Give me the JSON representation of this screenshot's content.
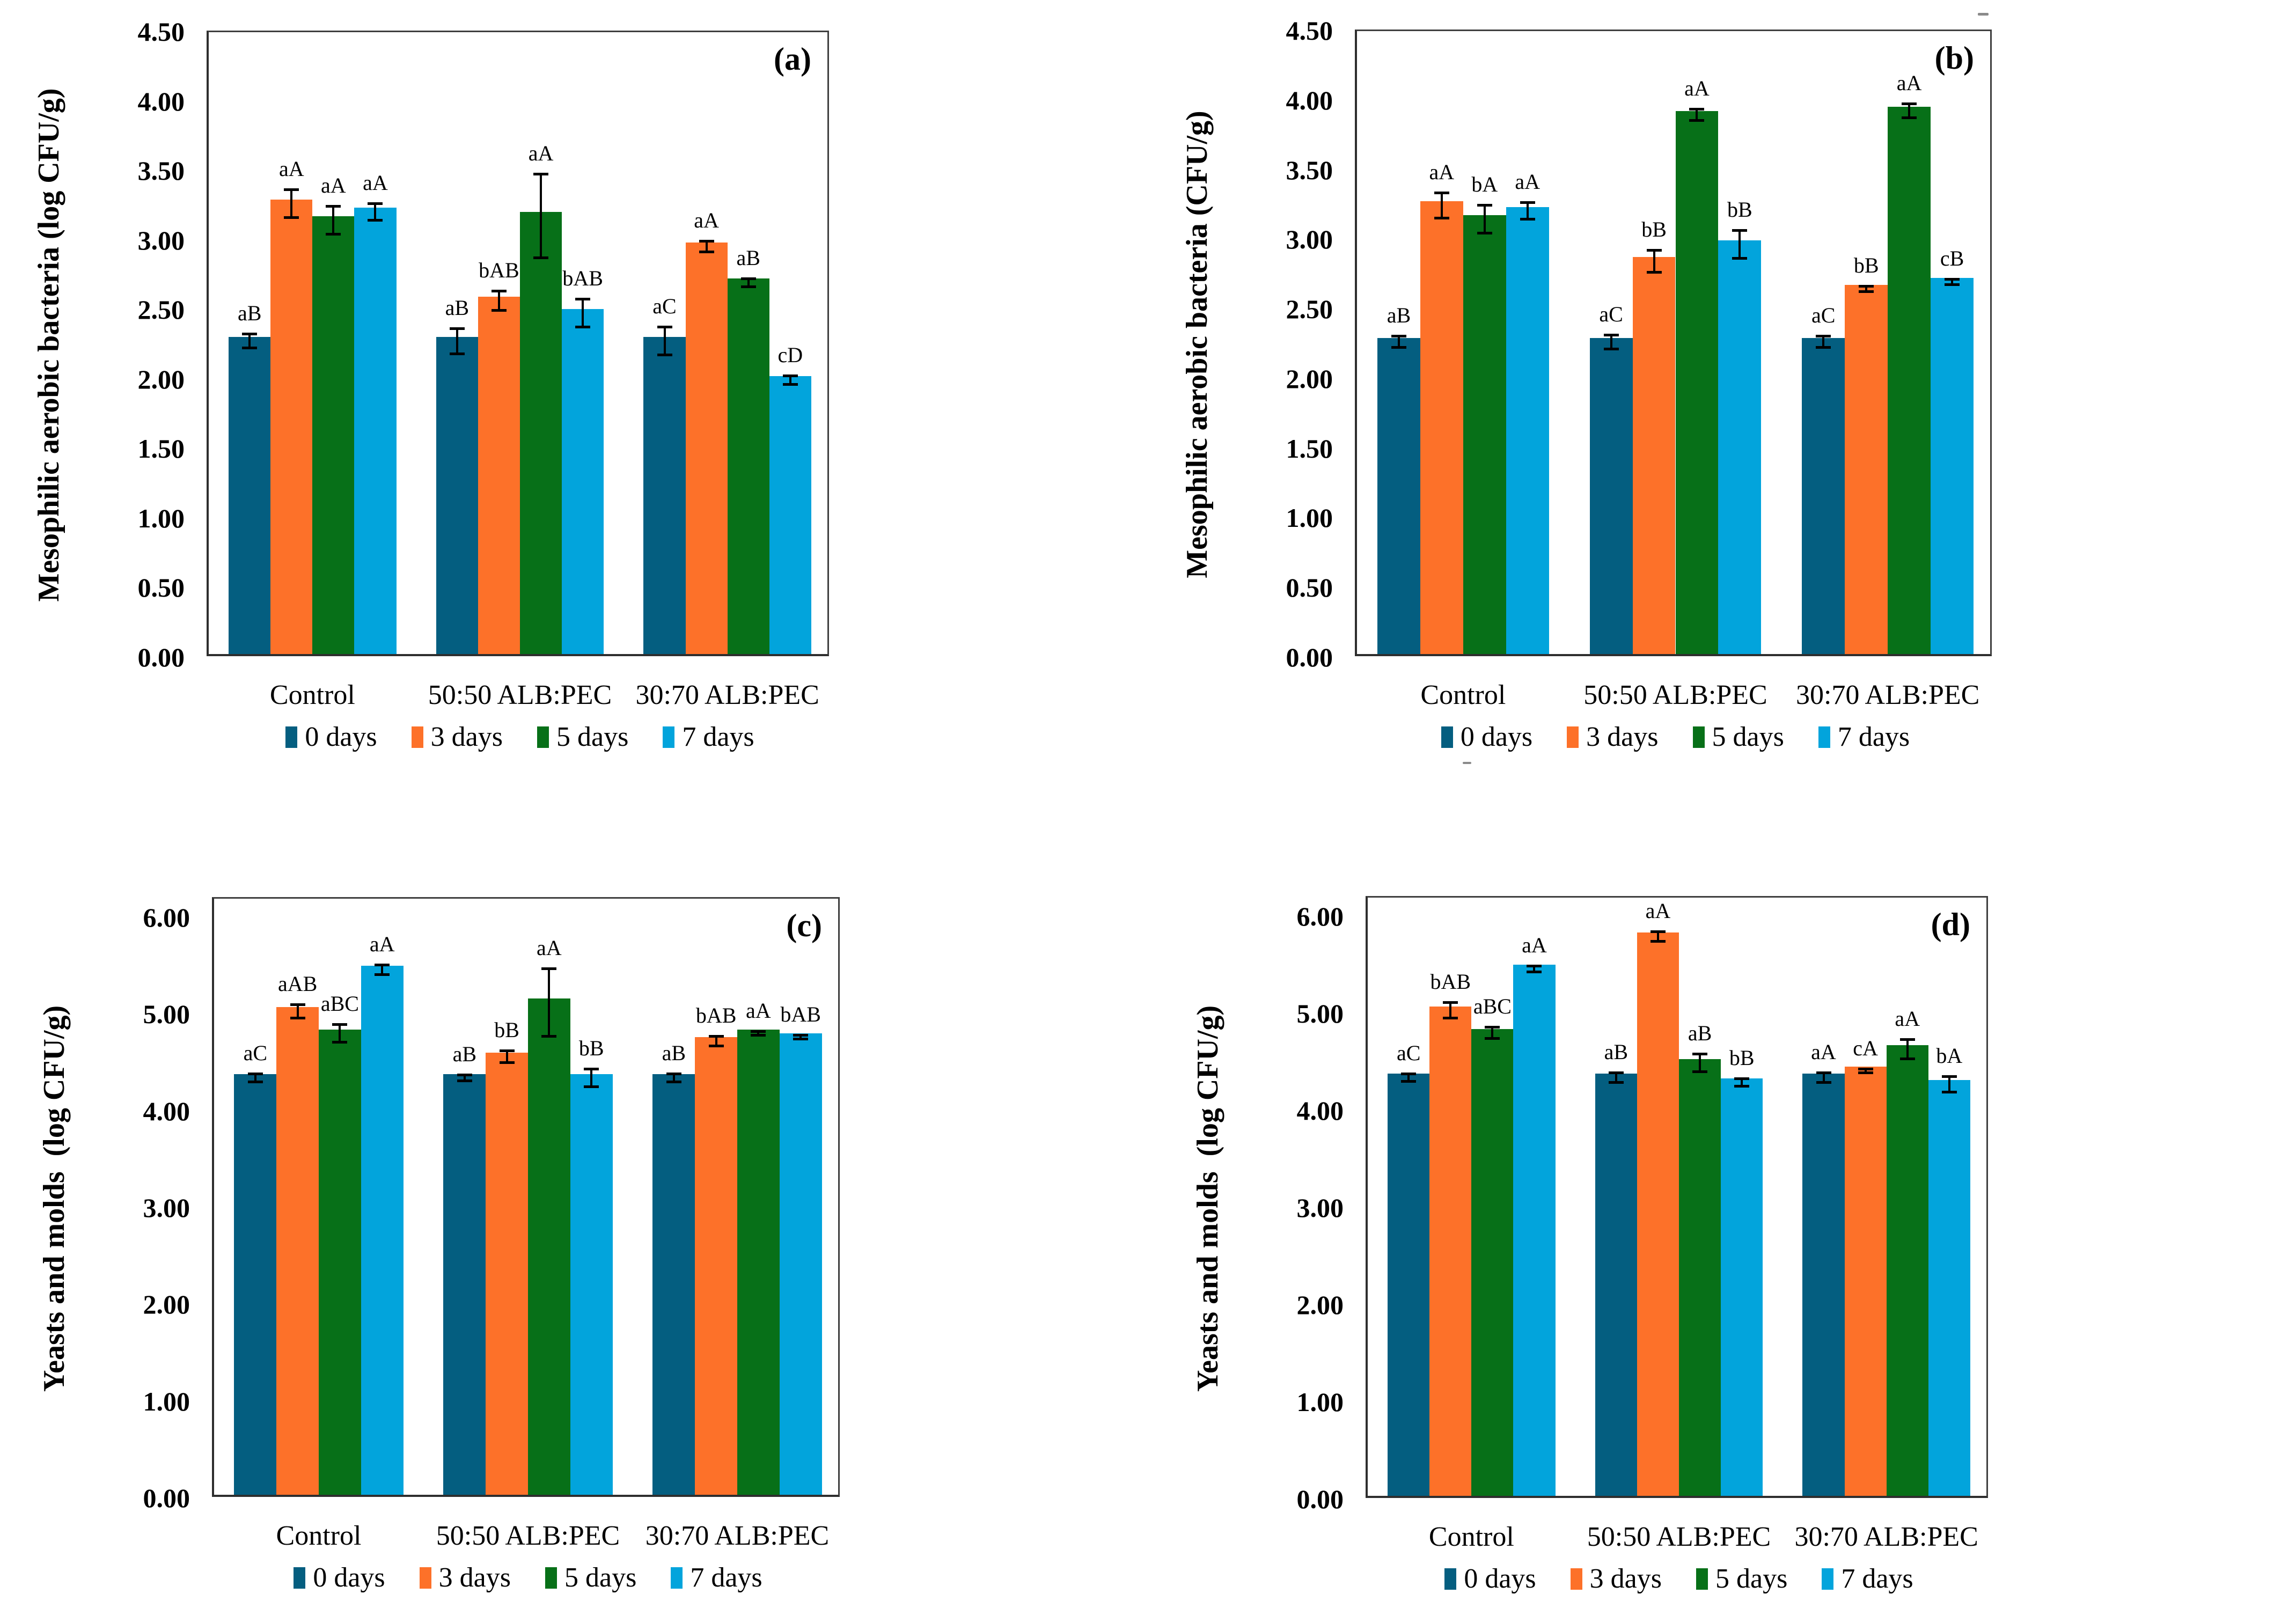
{
  "figure": {
    "background": "#ffffff",
    "series_colors": [
      "#045E80",
      "#FD7129",
      "#077018",
      "#02A4DC"
    ],
    "categories": [
      "Control",
      "50:50 ALB:PEC",
      "30:70 ALB:PEC"
    ],
    "legend_labels": [
      "0 days",
      "3 days",
      "5 days",
      "7 days"
    ]
  },
  "chart_data": [
    {
      "type": "bar",
      "panel_label": "(a)",
      "ylabel": "Mesophilic aerobic bacteria (log CFU/g)",
      "ylim": [
        0,
        4.5
      ],
      "ytick_step": 0.5,
      "tick_decimals": 2,
      "grid": false,
      "legend_position": "bottom",
      "categories": [
        "Control",
        "50:50 ALB:PEC",
        "30:70 ALB:PEC"
      ],
      "series": [
        {
          "name": "0 days",
          "color": "#045E80",
          "values": [
            2.28,
            2.28,
            2.28
          ],
          "errors": [
            0.05,
            0.09,
            0.1
          ],
          "letters": [
            "aB",
            "aB",
            "aC"
          ]
        },
        {
          "name": "3 days",
          "color": "#FD7129",
          "values": [
            3.27,
            2.57,
            2.96
          ],
          "errors": [
            0.1,
            0.07,
            0.04
          ],
          "letters": [
            "aA",
            "bAB",
            "aA"
          ]
        },
        {
          "name": "5 days",
          "color": "#077018",
          "values": [
            3.15,
            3.18,
            2.7
          ],
          "errors": [
            0.1,
            0.3,
            0.03
          ],
          "letters": [
            "aA",
            "aA",
            "aB"
          ]
        },
        {
          "name": "7 days",
          "color": "#02A4DC",
          "values": [
            3.21,
            2.48,
            2.0
          ],
          "errors": [
            0.06,
            0.1,
            0.03
          ],
          "letters": [
            "aA",
            "bAB",
            "cD"
          ]
        }
      ]
    },
    {
      "type": "bar",
      "panel_label": "(b)",
      "ylabel": "Mesophilic aerobic bacteria (CFU/g)",
      "ylim": [
        0,
        4.5
      ],
      "ytick_step": 0.5,
      "tick_decimals": 2,
      "grid": false,
      "legend_position": "bottom",
      "categories": [
        "Control",
        "50:50 ALB:PEC",
        "30:70 ALB:PEC"
      ],
      "series": [
        {
          "name": "0 days",
          "color": "#045E80",
          "values": [
            2.27,
            2.27,
            2.27
          ],
          "errors": [
            0.04,
            0.05,
            0.04
          ],
          "letters": [
            "aB",
            "aC",
            "aC"
          ]
        },
        {
          "name": "3 days",
          "color": "#FD7129",
          "values": [
            3.25,
            2.85,
            2.65
          ],
          "errors": [
            0.09,
            0.08,
            0.02
          ],
          "letters": [
            "aA",
            "bB",
            "bB"
          ]
        },
        {
          "name": "5 days",
          "color": "#077018",
          "values": [
            3.15,
            3.9,
            3.93
          ],
          "errors": [
            0.1,
            0.04,
            0.05
          ],
          "letters": [
            "bA",
            "aA",
            "aA"
          ]
        },
        {
          "name": "7 days",
          "color": "#02A4DC",
          "values": [
            3.21,
            2.97,
            2.7
          ],
          "errors": [
            0.06,
            0.1,
            0.02
          ],
          "letters": [
            "aA",
            "bB",
            "cB"
          ]
        }
      ]
    },
    {
      "type": "bar",
      "panel_label": "(c)",
      "ylabel": "Yeasts and molds  (log CFU/g)",
      "ylim": [
        0,
        6.0
      ],
      "ytick_step": 1.0,
      "tick_decimals": 2,
      "grid": false,
      "legend_position": "bottom",
      "categories": [
        "Control",
        "50:50 ALB:PEC",
        "30:70 ALB:PEC"
      ],
      "series": [
        {
          "name": "0 days",
          "color": "#045E80",
          "values": [
            4.35,
            4.35,
            4.35
          ],
          "errors": [
            0.04,
            0.03,
            0.04
          ],
          "letters": [
            "aC",
            "aB",
            "aB"
          ]
        },
        {
          "name": "3 days",
          "color": "#FD7129",
          "values": [
            5.04,
            4.57,
            4.73
          ],
          "errors": [
            0.07,
            0.06,
            0.05
          ],
          "letters": [
            "aAB",
            "bB",
            "bAB"
          ]
        },
        {
          "name": "5 days",
          "color": "#077018",
          "values": [
            4.81,
            5.13,
            4.81
          ],
          "errors": [
            0.09,
            0.35,
            0.02
          ],
          "letters": [
            "aBC",
            "aA",
            "aA"
          ]
        },
        {
          "name": "7 days",
          "color": "#02A4DC",
          "values": [
            5.47,
            4.35,
            4.77
          ],
          "errors": [
            0.05,
            0.09,
            0.02
          ],
          "letters": [
            "aA",
            "bB",
            "bAB"
          ]
        }
      ]
    },
    {
      "type": "bar",
      "panel_label": "(d)",
      "ylabel": "Yeasts and molds  (log CFU/g)",
      "ylim": [
        0,
        6.0
      ],
      "ytick_step": 1.0,
      "tick_decimals": 2,
      "grid": false,
      "legend_position": "bottom",
      "categories": [
        "Control",
        "50:50 ALB:PEC",
        "30:70 ALB:PEC"
      ],
      "series": [
        {
          "name": "0 days",
          "color": "#045E80",
          "values": [
            4.35,
            4.35,
            4.35
          ],
          "errors": [
            0.04,
            0.05,
            0.05
          ],
          "letters": [
            "aC",
            "aB",
            "aA"
          ]
        },
        {
          "name": "3 days",
          "color": "#FD7129",
          "values": [
            5.04,
            5.8,
            4.42
          ],
          "errors": [
            0.08,
            0.05,
            0.02
          ],
          "letters": [
            "bAB",
            "aA",
            "cA"
          ]
        },
        {
          "name": "5 days",
          "color": "#077018",
          "values": [
            4.81,
            4.5,
            4.64
          ],
          "errors": [
            0.06,
            0.09,
            0.1
          ],
          "letters": [
            "aBC",
            "aB",
            "aA"
          ]
        },
        {
          "name": "7 days",
          "color": "#02A4DC",
          "values": [
            5.47,
            4.3,
            4.28
          ],
          "errors": [
            0.03,
            0.04,
            0.08
          ],
          "letters": [
            "aA",
            "bB",
            "bA"
          ]
        }
      ]
    }
  ]
}
